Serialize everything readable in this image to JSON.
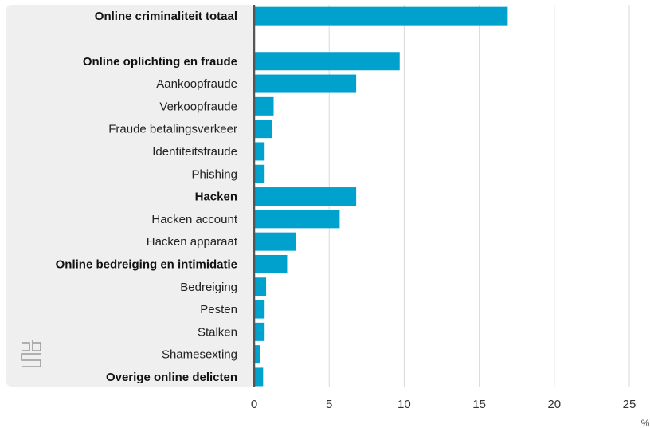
{
  "chart_data": {
    "type": "bar",
    "orientation": "horizontal",
    "categories": [
      "Online criminaliteit totaal",
      "",
      "Online oplichting en fraude",
      "Aankoopfraude",
      "Verkoopfraude",
      "Fraude betalingsverkeer",
      "Identiteitsfraude",
      "Phishing",
      "Hacken",
      "Hacken account",
      "Hacken apparaat",
      "Online bedreiging en intimidatie",
      "Bedreiging",
      "Pesten",
      "Stalken",
      "Shamesexting",
      "Overige online delicten"
    ],
    "bold_categories": [
      "Online criminaliteit totaal",
      "Online oplichting en fraude",
      "Hacken",
      "Online bedreiging en intimidatie",
      "Overige online delicten"
    ],
    "values": [
      16.9,
      null,
      9.7,
      6.8,
      1.3,
      1.2,
      0.7,
      0.7,
      6.8,
      5.7,
      2.8,
      2.2,
      0.8,
      0.7,
      0.7,
      0.4,
      0.6
    ],
    "xlim": [
      0,
      25
    ],
    "xticks": [
      0,
      5,
      10,
      15,
      20,
      25
    ],
    "xlabel": "%",
    "grid": true,
    "bar_color": "#00a1cd",
    "label_panel_color": "#efefef",
    "axis_color": "#555555",
    "grid_color": "#d9d9d9",
    "logo": "cbs-logo"
  }
}
